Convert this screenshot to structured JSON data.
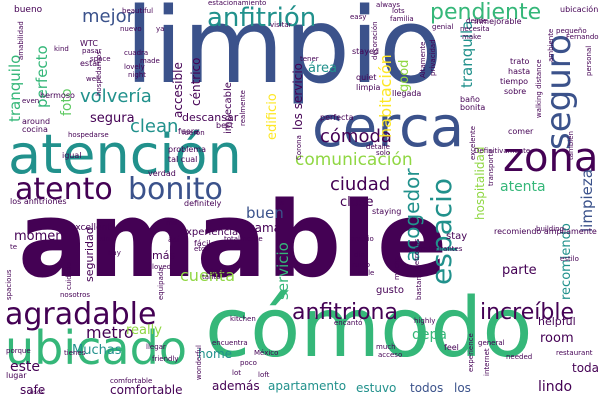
{
  "palette": {
    "purple": "#440154",
    "indigo": "#3b528b",
    "teal": "#21918c",
    "bluegreen": "#2c728e",
    "green": "#35b779",
    "lime": "#90d743",
    "yellow": "#fde725",
    "lightgreen": "#5ec962"
  },
  "words": [
    {
      "text": "amable",
      "color": "purple"
    },
    {
      "text": "limpio",
      "color": "indigo"
    },
    {
      "text": "cómodo",
      "color": "green"
    },
    {
      "text": "atención",
      "color": "teal"
    },
    {
      "text": "cerca",
      "color": "indigo"
    },
    {
      "text": "ubicado",
      "color": "green"
    },
    {
      "text": "bonito",
      "color": "indigo"
    },
    {
      "text": "atento",
      "color": "purple"
    },
    {
      "text": "agradable",
      "color": "purple"
    },
    {
      "text": "zona",
      "color": "purple"
    },
    {
      "text": "seguro",
      "color": "indigo"
    },
    {
      "text": "anfitrión",
      "color": "teal"
    },
    {
      "text": "espacio",
      "color": "teal"
    },
    {
      "text": "anfitriona",
      "color": "purple"
    },
    {
      "text": "increíble",
      "color": "purple"
    },
    {
      "text": "cómoda",
      "color": "purple"
    },
    {
      "text": "comunicación",
      "color": "lime"
    },
    {
      "text": "ciudad",
      "color": "purple"
    },
    {
      "text": "clean",
      "color": "teal"
    },
    {
      "text": "pendiente",
      "color": "green"
    },
    {
      "text": "mejor",
      "color": "indigo"
    },
    {
      "text": "volvería",
      "color": "teal"
    },
    {
      "text": "acogedor",
      "color": "teal"
    },
    {
      "text": "metro",
      "color": "purple"
    },
    {
      "text": "cuenta",
      "color": "lime"
    },
    {
      "text": "tranquilo",
      "color": "green"
    },
    {
      "text": "perfecto",
      "color": "green"
    },
    {
      "text": "habitación",
      "color": "yellow"
    },
    {
      "text": "atenta",
      "color": "green"
    },
    {
      "text": "recomiendo",
      "color": "teal"
    },
    {
      "text": "limpieza",
      "color": "indigo"
    },
    {
      "text": "buen",
      "color": "indigo"
    },
    {
      "text": "tranquila",
      "color": "teal"
    },
    {
      "text": "servicio",
      "color": "green"
    },
    {
      "text": "parte",
      "color": "purple"
    },
    {
      "text": "lindo",
      "color": "purple"
    },
    {
      "text": "depa",
      "color": "green"
    },
    {
      "text": "este",
      "color": "purple"
    },
    {
      "text": "momento",
      "color": "purple"
    },
    {
      "text": "comfortable",
      "color": "purple"
    },
    {
      "text": "apartamento",
      "color": "teal"
    },
    {
      "text": "estuvo",
      "color": "teal"
    },
    {
      "text": "todos",
      "color": "indigo"
    },
    {
      "text": "los",
      "color": "indigo"
    },
    {
      "text": "room",
      "color": "purple"
    },
    {
      "text": "toda",
      "color": "purple"
    },
    {
      "text": "safe",
      "color": "purple"
    },
    {
      "text": "home",
      "color": "teal"
    },
    {
      "text": "además",
      "color": "purple"
    },
    {
      "text": "Muchas",
      "color": "teal"
    },
    {
      "text": "really",
      "color": "lime"
    },
    {
      "text": "foto",
      "color": "lightgreen"
    },
    {
      "text": "área",
      "color": "teal"
    },
    {
      "text": "segura",
      "color": "purple"
    },
    {
      "text": "good",
      "color": "lime"
    },
    {
      "text": "edificio",
      "color": "yellow"
    },
    {
      "text": "cama",
      "color": "purple"
    },
    {
      "text": "close",
      "color": "purple"
    },
    {
      "text": "céntrico",
      "color": "purple"
    },
    {
      "text": "accesible",
      "color": "purple"
    },
    {
      "text": "los servicio",
      "color": "purple"
    },
    {
      "text": "excellent",
      "color": "purple"
    },
    {
      "text": "seguridad",
      "color": "purple"
    },
    {
      "text": "experiencia",
      "color": "purple"
    },
    {
      "text": "más",
      "color": "purple"
    },
    {
      "text": "descansar",
      "color": "purple"
    },
    {
      "text": "impecable",
      "color": "purple"
    },
    {
      "text": "bueno",
      "color": "purple"
    },
    {
      "text": "hospitalidad",
      "color": "lime"
    },
    {
      "text": "gusto",
      "color": "purple"
    },
    {
      "text": "helpful",
      "color": "purple"
    },
    {
      "text": "stay",
      "color": "purple"
    },
    {
      "text": "definitely",
      "color": "purple"
    },
    {
      "text": "staying",
      "color": "purple"
    },
    {
      "text": "recomiendo ampliamente",
      "color": "purple"
    },
    {
      "text": "estar",
      "color": "purple"
    },
    {
      "text": "WTC",
      "color": "purple"
    },
    {
      "text": "lugar",
      "color": "purple"
    },
    {
      "text": "ideal",
      "color": "purple"
    },
    {
      "text": "limpia",
      "color": "purple"
    },
    {
      "text": "quiet",
      "color": "purple"
    },
    {
      "text": "llegada",
      "color": "purple"
    },
    {
      "text": "baño",
      "color": "purple"
    },
    {
      "text": "bonita",
      "color": "purple"
    },
    {
      "text": "trato",
      "color": "purple"
    },
    {
      "text": "hasta",
      "color": "purple"
    },
    {
      "text": "tiempo",
      "color": "purple"
    },
    {
      "text": "sobre",
      "color": "purple"
    },
    {
      "text": "around",
      "color": "purple"
    },
    {
      "text": "cocina",
      "color": "purple"
    },
    {
      "text": "hermoso",
      "color": "purple"
    },
    {
      "text": "walking distance",
      "color": "purple"
    },
    {
      "text": "ubicación",
      "color": "purple"
    },
    {
      "text": "Fernando",
      "color": "purple"
    },
    {
      "text": "pequeño",
      "color": "purple"
    },
    {
      "text": "inmejorable",
      "color": "purple"
    },
    {
      "text": "genial",
      "color": "purple"
    },
    {
      "text": "desde",
      "color": "purple"
    },
    {
      "text": "necesita",
      "color": "purple"
    },
    {
      "text": "make",
      "color": "purple"
    },
    {
      "text": "problema",
      "color": "purple"
    },
    {
      "text": "tal cual",
      "color": "purple"
    },
    {
      "text": "fuera",
      "color": "purple"
    },
    {
      "text": "best",
      "color": "purple"
    },
    {
      "text": "comer",
      "color": "purple"
    },
    {
      "text": "Definitivamente",
      "color": "purple"
    },
    {
      "text": "solo",
      "color": "purple"
    },
    {
      "text": "detalle",
      "color": "purple"
    },
    {
      "text": "perfecta",
      "color": "purple"
    },
    {
      "text": "stayed",
      "color": "purple"
    },
    {
      "text": "igual",
      "color": "purple"
    },
    {
      "text": "verdad",
      "color": "purple"
    },
    {
      "text": "los anfitriones",
      "color": "purple"
    },
    {
      "text": "fácil",
      "color": "purple"
    },
    {
      "text": "totalmente",
      "color": "purple"
    },
    {
      "text": "así",
      "color": "purple"
    },
    {
      "text": "amplio",
      "color": "purple"
    },
    {
      "text": "día",
      "color": "purple"
    },
    {
      "text": "ruido",
      "color": "purple"
    },
    {
      "text": "calle",
      "color": "purple"
    },
    {
      "text": "tanto",
      "color": "purple"
    },
    {
      "text": "loved",
      "color": "purple"
    },
    {
      "text": "nosotros",
      "color": "purple"
    },
    {
      "text": "tienes",
      "color": "purple"
    },
    {
      "text": "porque",
      "color": "purple"
    },
    {
      "text": "llegar",
      "color": "purple"
    },
    {
      "text": "encuentra",
      "color": "purple"
    },
    {
      "text": "México",
      "color": "purple"
    },
    {
      "text": "poco",
      "color": "purple"
    },
    {
      "text": "lot",
      "color": "purple"
    },
    {
      "text": "much",
      "color": "purple"
    },
    {
      "text": "acceso",
      "color": "purple"
    },
    {
      "text": "feel",
      "color": "purple"
    },
    {
      "text": "needed",
      "color": "purple"
    },
    {
      "text": "highly",
      "color": "purple"
    },
    {
      "text": "general",
      "color": "purple"
    },
    {
      "text": "friendly",
      "color": "purple"
    },
    {
      "text": "kitchen",
      "color": "purple"
    },
    {
      "text": "beautiful",
      "color": "purple"
    },
    {
      "text": "nuevo",
      "color": "purple"
    },
    {
      "text": "pasar",
      "color": "purple"
    },
    {
      "text": "space",
      "color": "purple"
    },
    {
      "text": "well",
      "color": "purple"
    },
    {
      "text": "night",
      "color": "purple"
    },
    {
      "text": "lovely",
      "color": "purple"
    },
    {
      "text": "estacionamiento",
      "color": "purple"
    },
    {
      "text": "always",
      "color": "purple"
    },
    {
      "text": "lots",
      "color": "purple"
    },
    {
      "text": "familia",
      "color": "purple"
    },
    {
      "text": "easy",
      "color": "purple"
    },
    {
      "text": "hospedarse",
      "color": "purple"
    },
    {
      "text": "fuerón",
      "color": "purple"
    },
    {
      "text": "restaurantes",
      "color": "purple"
    },
    {
      "text": "estilo",
      "color": "purple"
    },
    {
      "text": "building",
      "color": "purple"
    },
    {
      "text": "realmente",
      "color": "purple"
    },
    {
      "text": "también",
      "color": "purple"
    },
    {
      "text": "excelente",
      "color": "purple"
    },
    {
      "text": "personal",
      "color": "purple"
    },
    {
      "text": "privacidad",
      "color": "purple"
    },
    {
      "text": "Altamente",
      "color": "purple"
    },
    {
      "text": "transporte",
      "color": "purple"
    },
    {
      "text": "decoración",
      "color": "purple"
    },
    {
      "text": "mucha",
      "color": "purple"
    },
    {
      "text": "metrobus",
      "color": "purple"
    },
    {
      "text": "bastante",
      "color": "purple"
    },
    {
      "text": "wonderful",
      "color": "purple"
    },
    {
      "text": "etc",
      "color": "purple"
    },
    {
      "text": "even",
      "color": "purple"
    },
    {
      "text": "cuadra",
      "color": "purple"
    },
    {
      "text": "spacious",
      "color": "purple"
    },
    {
      "text": "cuidado",
      "color": "purple"
    },
    {
      "text": "hospedarnos",
      "color": "purple"
    },
    {
      "text": "kind",
      "color": "purple"
    },
    {
      "text": "loft",
      "color": "purple"
    },
    {
      "text": "internet",
      "color": "purple"
    },
    {
      "text": "experience",
      "color": "purple"
    },
    {
      "text": "sin",
      "color": "purple"
    },
    {
      "text": "encantó",
      "color": "purple"
    },
    {
      "text": "restaurant",
      "color": "purple"
    },
    {
      "text": "equipada",
      "color": "purple"
    },
    {
      "text": "visitar",
      "color": "purple"
    },
    {
      "text": "mil",
      "color": "purple"
    },
    {
      "text": "hay",
      "color": "purple"
    },
    {
      "text": "ya",
      "color": "purple"
    },
    {
      "text": "tener",
      "color": "purple"
    },
    {
      "text": "esos",
      "color": "purple"
    },
    {
      "text": "s",
      "color": "purple"
    },
    {
      "text": "te",
      "color": "purple"
    },
    {
      "text": "made",
      "color": "purple"
    },
    {
      "text": "Corona",
      "color": "purple"
    },
    {
      "text": "ambiente",
      "color": "purple"
    },
    {
      "text": "amabilidad",
      "color": "purple"
    },
    {
      "text": "comfortable",
      "color": "purple"
    }
  ]
}
